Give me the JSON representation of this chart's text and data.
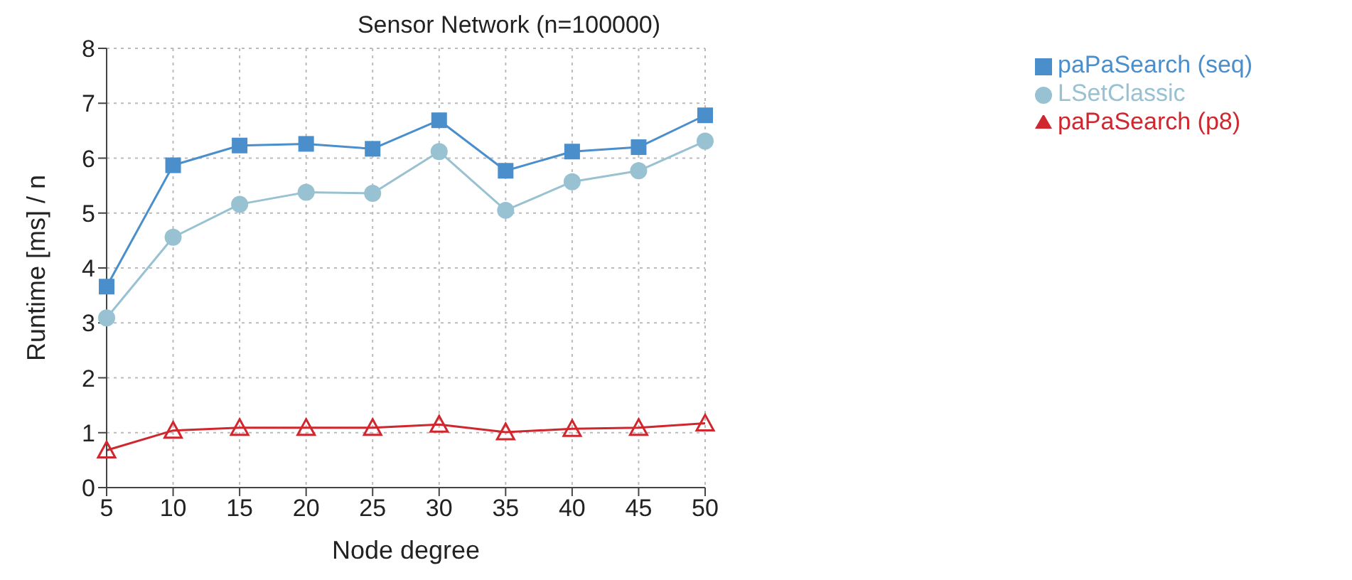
{
  "chart_data": {
    "type": "line",
    "title": "Sensor Network (n=100000)",
    "xlabel": "Node degree",
    "ylabel": "Runtime [ms] / n",
    "x": [
      5,
      10,
      15,
      20,
      25,
      30,
      35,
      40,
      45,
      50
    ],
    "series": [
      {
        "name": "paPaSearch (seq)",
        "color": "#4a8fcc",
        "marker": "square",
        "values": [
          3.66,
          5.87,
          6.23,
          6.26,
          6.17,
          6.69,
          5.77,
          6.12,
          6.2,
          6.78
        ]
      },
      {
        "name": "LSetClassic",
        "color": "#98c1d1",
        "marker": "circle",
        "values": [
          3.09,
          4.56,
          5.16,
          5.38,
          5.36,
          6.12,
          5.05,
          5.57,
          5.77,
          6.31
        ]
      },
      {
        "name": "paPaSearch (p8)",
        "color": "#d0272f",
        "marker": "triangle",
        "values": [
          0.68,
          1.04,
          1.09,
          1.09,
          1.09,
          1.15,
          1.01,
          1.07,
          1.09,
          1.17
        ]
      }
    ],
    "xlim": [
      5,
      50
    ],
    "xticks": [
      5,
      10,
      15,
      20,
      25,
      30,
      35,
      40,
      45,
      50
    ],
    "ylim": [
      0,
      8
    ],
    "yticks": [
      0,
      1,
      2,
      3,
      4,
      5,
      6,
      7,
      8
    ],
    "grid": true,
    "legend": "top right",
    "line_style": "solid"
  }
}
